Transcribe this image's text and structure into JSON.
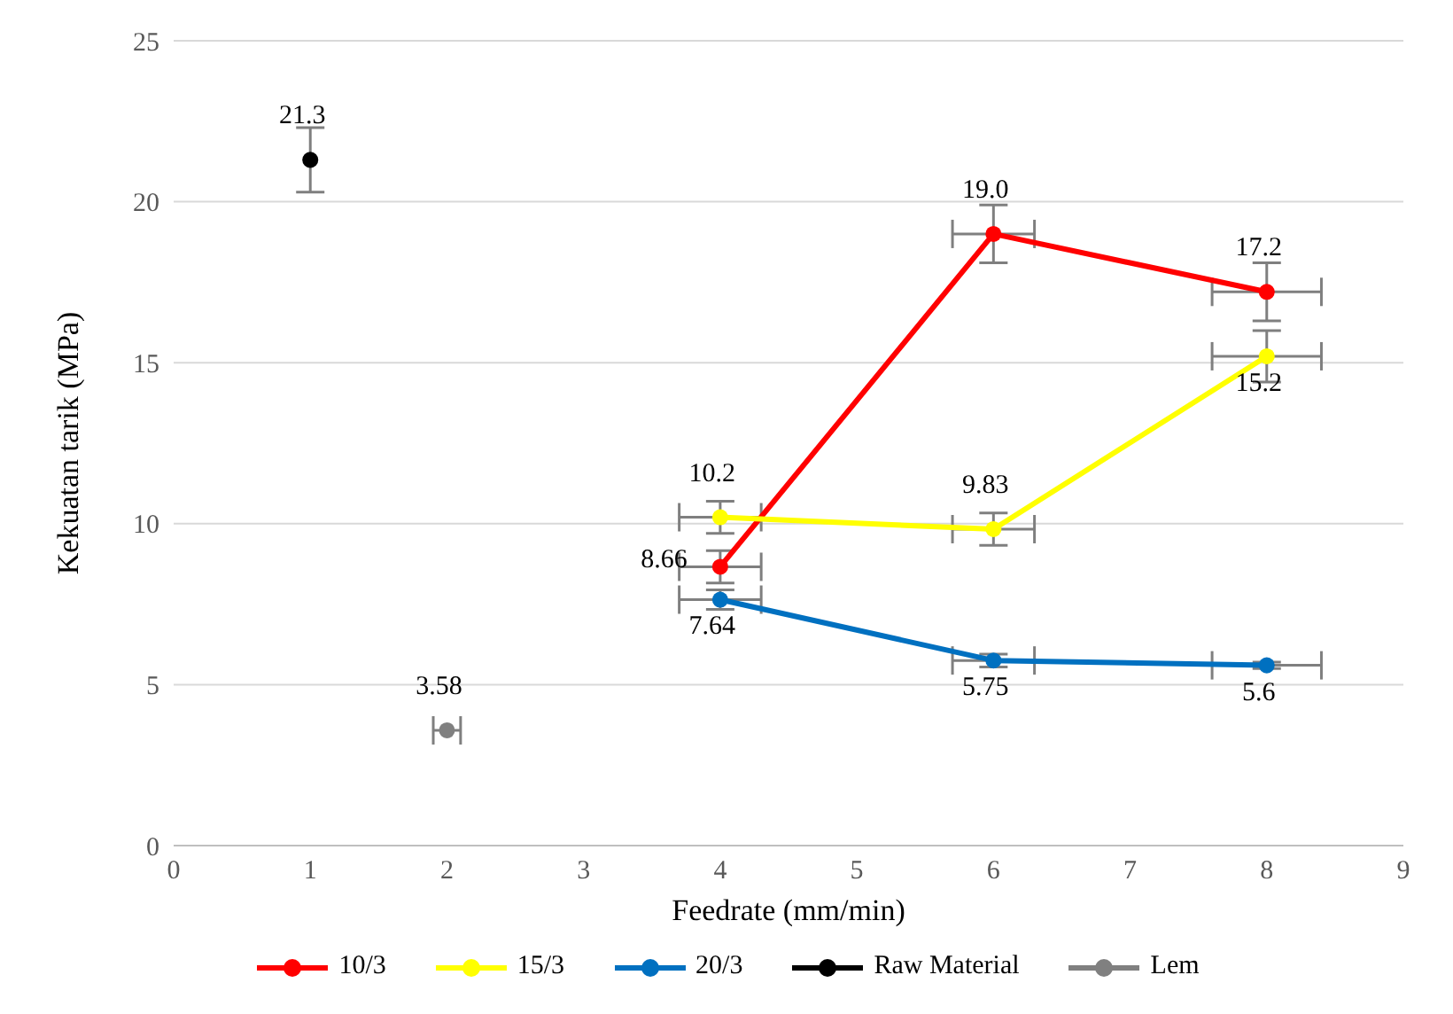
{
  "chart_data": {
    "type": "line",
    "xlabel": "Feedrate (mm/min)",
    "ylabel": "Kekuatan tarik (MPa)",
    "xlim": [
      0,
      9
    ],
    "xticks": [
      0,
      1,
      2,
      3,
      4,
      5,
      6,
      7,
      8,
      9
    ],
    "ylim": [
      0,
      25
    ],
    "yticks": [
      0,
      5,
      10,
      15,
      20,
      25
    ],
    "grid": "y",
    "legend": "bottom",
    "marker": "circle",
    "data_labels": true,
    "series": [
      {
        "name": "10/3",
        "color": "#ff0000",
        "x": [
          4,
          6,
          8
        ],
        "values": [
          8.66,
          19.0,
          17.2
        ],
        "value_labels": [
          "8.66",
          "19.0",
          "17.2"
        ],
        "errors": [
          0.5,
          0.9,
          0.9
        ],
        "xerrors": [
          0.3,
          0.3,
          0.4
        ]
      },
      {
        "name": "15/3",
        "color": "#ffff00",
        "x": [
          4,
          6,
          8
        ],
        "values": [
          10.2,
          9.83,
          15.2
        ],
        "errors": [
          0.5,
          0.5,
          0.8
        ],
        "xerrors": [
          0.3,
          0.3,
          0.4
        ]
      },
      {
        "name": "20/3",
        "color": "#0070c0",
        "x": [
          4,
          6,
          8
        ],
        "values": [
          7.64,
          5.75,
          5.6
        ],
        "errors": [
          0.3,
          0.2,
          0.1
        ],
        "xerrors": [
          0.3,
          0.3,
          0.4
        ]
      },
      {
        "name": "Raw Material",
        "type": "scatter",
        "color": "#000000",
        "x": [
          1
        ],
        "values": [
          21.3
        ],
        "errors": [
          1.0
        ]
      },
      {
        "name": "Lem",
        "type": "scatter",
        "color": "#808080",
        "x": [
          2
        ],
        "values": [
          3.58
        ],
        "xerrors": [
          0.1
        ]
      }
    ]
  }
}
